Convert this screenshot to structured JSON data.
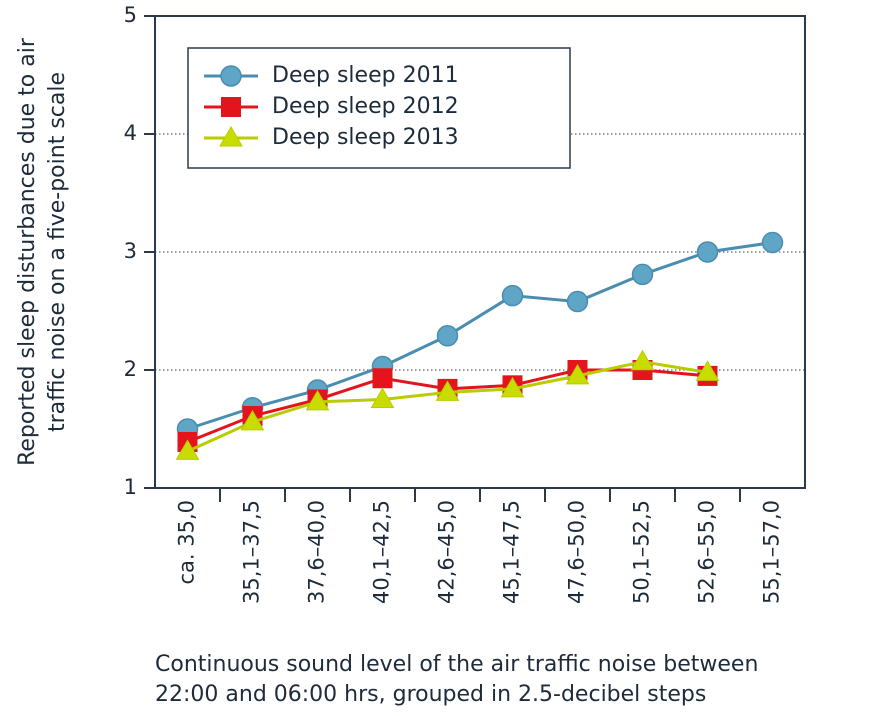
{
  "chart_data": {
    "type": "line",
    "categories": [
      "ca. 35,0",
      "35,1–37,5",
      "37,6–40,0",
      "40,1–42,5",
      "42,6–45,0",
      "45,1–47,5",
      "47,6–50,0",
      "50,1–52,5",
      "52,6–55,0",
      "55,1–57,0"
    ],
    "series": [
      {
        "name": "Deep sleep 2011",
        "color": "#4a8db0",
        "marker": "circle",
        "values": [
          1.5,
          1.68,
          1.83,
          2.03,
          2.29,
          2.63,
          2.58,
          2.81,
          3.0,
          3.08
        ]
      },
      {
        "name": "Deep sleep 2012",
        "color": "#e3141b",
        "marker": "square",
        "values": [
          1.39,
          1.61,
          1.75,
          1.93,
          1.84,
          1.87,
          2.0,
          2.0,
          1.95,
          null
        ]
      },
      {
        "name": "Deep sleep 2013",
        "color": "#b9cc00",
        "marker": "triangle",
        "values": [
          1.31,
          1.56,
          1.73,
          1.75,
          1.81,
          1.84,
          1.95,
          2.07,
          1.98,
          null
        ]
      }
    ],
    "ylabel": [
      "Reported sleep disturbances due to air",
      "traffic noise on a five-point scale"
    ],
    "xlabel": [
      "Continuous sound level of the air traffic noise between",
      "22:00 and 06:00 hrs, grouped in 2.5-decibel steps"
    ],
    "ylim": [
      1,
      5
    ],
    "yticks": [
      1,
      2,
      3,
      4,
      5
    ],
    "grid": true,
    "legend": "upper left"
  }
}
